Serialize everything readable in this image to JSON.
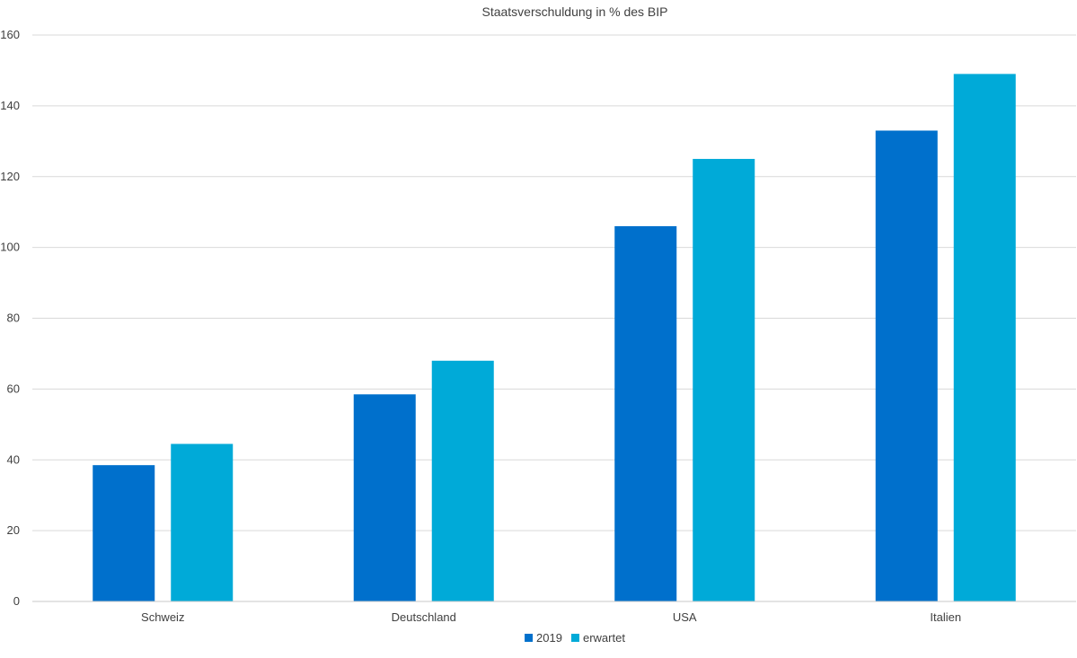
{
  "chart_data": {
    "type": "bar",
    "title": "Staatsverschuldung in % des BIP",
    "categories": [
      "Schweiz",
      "Deutschland",
      "USA",
      "Italien"
    ],
    "series": [
      {
        "name": "2019",
        "values": [
          38.5,
          58.5,
          106,
          133
        ],
        "color": "#0070cc"
      },
      {
        "name": "erwartet",
        "values": [
          44.5,
          68,
          125,
          149
        ],
        "color": "#00aad8"
      }
    ],
    "ylim": [
      0,
      160
    ],
    "yticks": [
      0,
      20,
      40,
      60,
      80,
      100,
      120,
      140,
      160
    ],
    "xlabel": "",
    "ylabel": "",
    "grid": true,
    "legend_position": "bottom"
  }
}
